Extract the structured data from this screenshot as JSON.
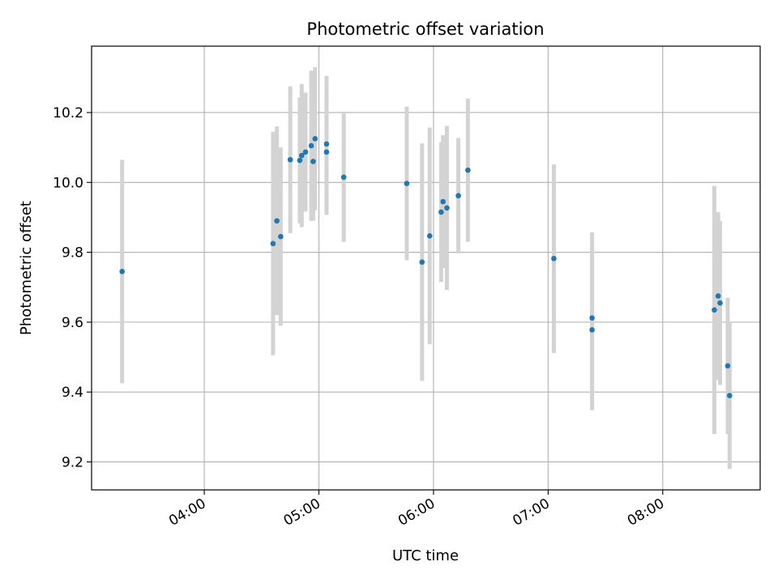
{
  "chart_data": {
    "type": "scatter",
    "title": "Photometric offset variation",
    "xlabel": "UTC time",
    "ylabel": "Photometric offset",
    "xlim": [
      "03:01",
      "08:51"
    ],
    "ylim": [
      9.12,
      10.39
    ],
    "x_ticks": [
      "04:00",
      "05:00",
      "06:00",
      "07:00",
      "08:00"
    ],
    "y_ticks": [
      9.2,
      9.4,
      9.6,
      9.8,
      10.0,
      10.2
    ],
    "grid": true,
    "colors": {
      "point": "#1f77b4",
      "errorbar": "#d3d3d3",
      "grid": "#b0b0b0"
    },
    "series": [
      {
        "points": [
          {
            "x": "03:17",
            "y": 9.745,
            "yerr": 0.32
          },
          {
            "x": "04:36",
            "y": 9.825,
            "yerr": 0.32
          },
          {
            "x": "04:38",
            "y": 9.89,
            "yerr": 0.27
          },
          {
            "x": "04:40",
            "y": 9.845,
            "yerr": 0.255
          },
          {
            "x": "04:45",
            "y": 10.065,
            "yerr": 0.21
          },
          {
            "x": "04:50",
            "y": 10.063,
            "yerr": 0.18
          },
          {
            "x": "04:51",
            "y": 10.077,
            "yerr": 0.205
          },
          {
            "x": "04:53",
            "y": 10.087,
            "yerr": 0.17
          },
          {
            "x": "04:56",
            "y": 10.105,
            "yerr": 0.215
          },
          {
            "x": "04:57",
            "y": 10.06,
            "yerr": 0.17
          },
          {
            "x": "04:58",
            "y": 10.125,
            "yerr": 0.205
          },
          {
            "x": "05:04",
            "y": 10.087,
            "yerr": 0.18
          },
          {
            "x": "05:04",
            "y": 10.11,
            "yerr": 0.195
          },
          {
            "x": "05:13",
            "y": 10.015,
            "yerr": 0.185
          },
          {
            "x": "05:46",
            "y": 9.997,
            "yerr": 0.22
          },
          {
            "x": "05:54",
            "y": 9.772,
            "yerr": 0.34
          },
          {
            "x": "05:58",
            "y": 9.847,
            "yerr": 0.31
          },
          {
            "x": "06:04",
            "y": 9.915,
            "yerr": 0.2
          },
          {
            "x": "06:05",
            "y": 9.945,
            "yerr": 0.19
          },
          {
            "x": "06:07",
            "y": 9.927,
            "yerr": 0.235
          },
          {
            "x": "06:13",
            "y": 9.962,
            "yerr": 0.165
          },
          {
            "x": "06:18",
            "y": 10.035,
            "yerr": 0.205
          },
          {
            "x": "07:03",
            "y": 9.782,
            "yerr": 0.27
          },
          {
            "x": "07:23",
            "y": 9.612,
            "yerr": 0.245
          },
          {
            "x": "07:23",
            "y": 9.578,
            "yerr": 0.23
          },
          {
            "x": "08:27",
            "y": 9.635,
            "yerr": 0.355
          },
          {
            "x": "08:29",
            "y": 9.675,
            "yerr": 0.24
          },
          {
            "x": "08:30",
            "y": 9.655,
            "yerr": 0.235
          },
          {
            "x": "08:34",
            "y": 9.475,
            "yerr": 0.195
          },
          {
            "x": "08:35",
            "y": 9.39,
            "yerr": 0.21
          }
        ]
      }
    ]
  }
}
